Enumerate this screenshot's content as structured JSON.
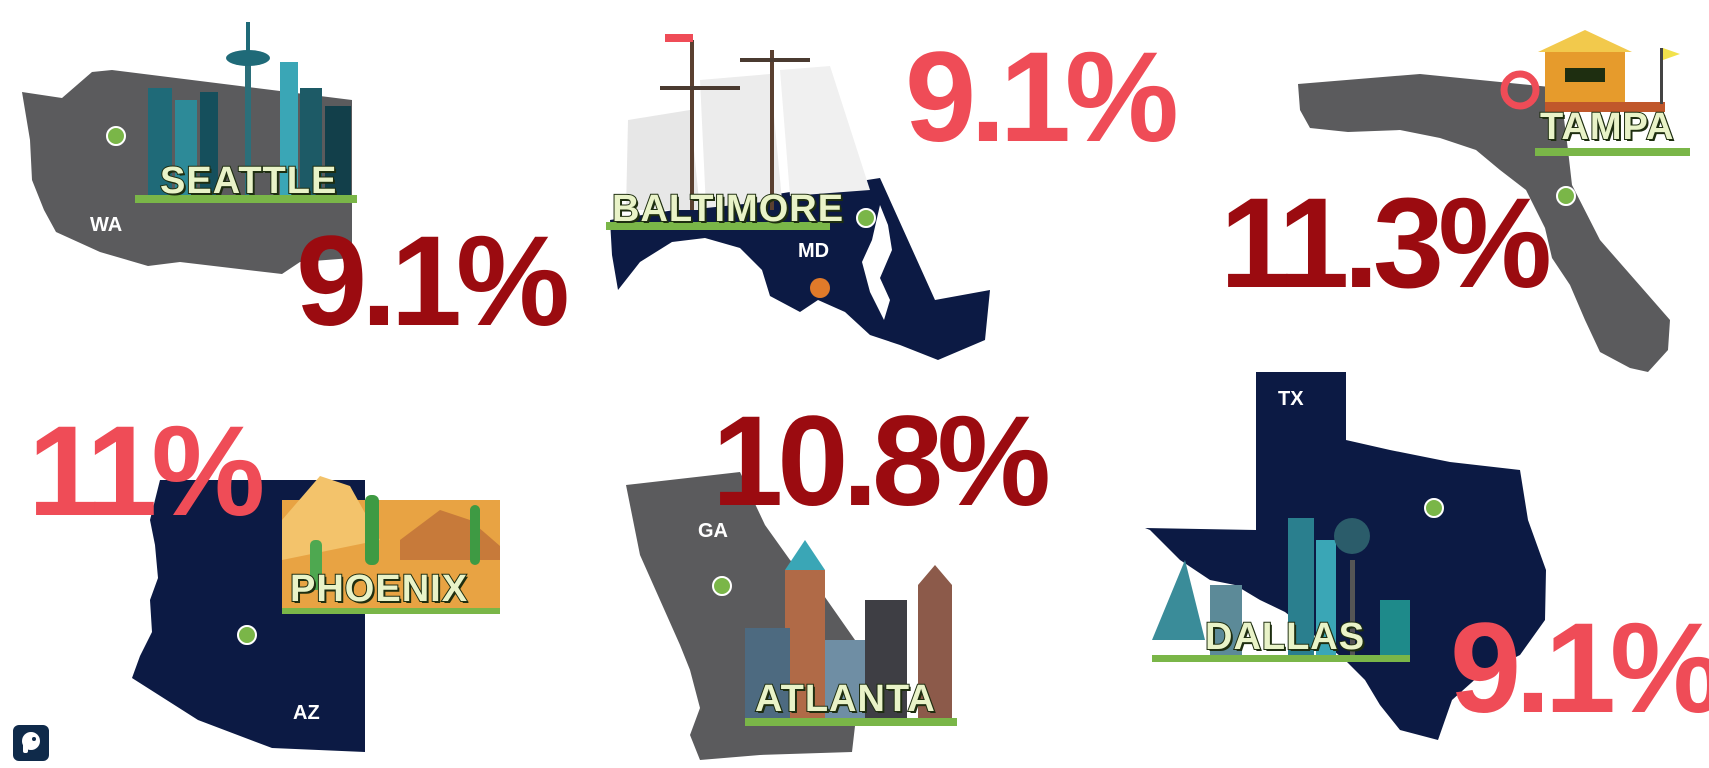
{
  "colors": {
    "gray_state": "#5b5b5d",
    "navy_state": "#0c1a44",
    "dark_red": "#9b0b10",
    "light_red": "#ef4c57",
    "green": "#7ab648"
  },
  "cities": [
    {
      "name": "SEATTLE",
      "state": "WA",
      "value": "9.1%",
      "icon": "space-needle-skyline"
    },
    {
      "name": "BALTIMORE",
      "state": "MD",
      "value": "9.1%",
      "icon": "tall-ship-and-crab"
    },
    {
      "name": "TAMPA",
      "state": "FL",
      "value": "11.3%",
      "icon": "lifeguard-tower"
    },
    {
      "name": "PHOENIX",
      "state": "AZ",
      "value": "11%",
      "icon": "desert-cactus"
    },
    {
      "name": "ATLANTA",
      "state": "GA",
      "value": "10.8%",
      "icon": "atlanta-skyline"
    },
    {
      "name": "DALLAS",
      "state": "TX",
      "value": "9.1%",
      "icon": "dallas-skyline"
    }
  ],
  "logo": {
    "icon": "elephant-logo-icon"
  }
}
